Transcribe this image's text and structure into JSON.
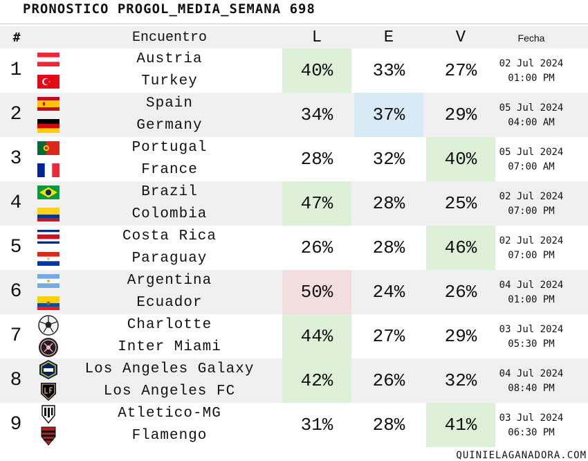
{
  "title": "PRONOSTICO PROGOL_MEDIA_SEMANA 698",
  "headers": {
    "num": "#",
    "encuentro": "Encuentro",
    "l": "L",
    "e": "E",
    "v": "V",
    "fecha": "Fecha"
  },
  "matches": [
    {
      "num": "1",
      "home": "Austria",
      "away": "Turkey",
      "l": "40%",
      "e": "33%",
      "v": "27%",
      "date": "02 Jul 2024",
      "time": "01:00 PM",
      "fav": "l"
    },
    {
      "num": "2",
      "home": "Spain",
      "away": "Germany",
      "l": "34%",
      "e": "37%",
      "v": "29%",
      "date": "05 Jul 2024",
      "time": "04:00 AM",
      "fav": "e"
    },
    {
      "num": "3",
      "home": "Portugal",
      "away": "France",
      "l": "28%",
      "e": "32%",
      "v": "40%",
      "date": "05 Jul 2024",
      "time": "07:00 AM",
      "fav": "v"
    },
    {
      "num": "4",
      "home": "Brazil",
      "away": "Colombia",
      "l": "47%",
      "e": "28%",
      "v": "25%",
      "date": "02 Jul 2024",
      "time": "07:00 PM",
      "fav": "l"
    },
    {
      "num": "5",
      "home": "Costa Rica",
      "away": "Paraguay",
      "l": "26%",
      "e": "28%",
      "v": "46%",
      "date": "02 Jul 2024",
      "time": "07:00 PM",
      "fav": "v"
    },
    {
      "num": "6",
      "home": "Argentina",
      "away": "Ecuador",
      "l": "50%",
      "e": "24%",
      "v": "26%",
      "date": "04 Jul 2024",
      "time": "01:00 PM",
      "fav": "l"
    },
    {
      "num": "7",
      "home": "Charlotte",
      "away": "Inter Miami",
      "l": "44%",
      "e": "27%",
      "v": "29%",
      "date": "03 Jul 2024",
      "time": "05:30 PM",
      "fav": "l"
    },
    {
      "num": "8",
      "home": "Los Angeles Galaxy",
      "away": "Los Angeles FC",
      "l": "42%",
      "e": "26%",
      "v": "32%",
      "date": "04 Jul 2024",
      "time": "08:40 PM",
      "fav": "l"
    },
    {
      "num": "9",
      "home": "Atletico-MG",
      "away": "Flamengo",
      "l": "31%",
      "e": "28%",
      "v": "41%",
      "date": "03 Jul 2024",
      "time": "06:30 PM",
      "fav": "v"
    }
  ],
  "highlight_colors": {
    "l": "#dff0d8",
    "e": "#d9eaf7",
    "v": "#dff0d8",
    "strong_l": "#f2dede"
  },
  "icons": [
    "austria-flag-icon",
    "turkey-flag-icon",
    "spain-flag-icon",
    "germany-flag-icon",
    "portugal-flag-icon",
    "france-flag-icon",
    "brazil-flag-icon",
    "colombia-flag-icon",
    "costa-rica-flag-icon",
    "paraguay-flag-icon",
    "argentina-flag-icon",
    "ecuador-flag-icon",
    "charlotte-crest-icon",
    "inter-miami-crest-icon",
    "la-galaxy-crest-icon",
    "lafc-crest-icon",
    "atletico-mg-crest-icon",
    "flamengo-crest-icon"
  ],
  "footer": "QUINIELAGANADORA.COM"
}
